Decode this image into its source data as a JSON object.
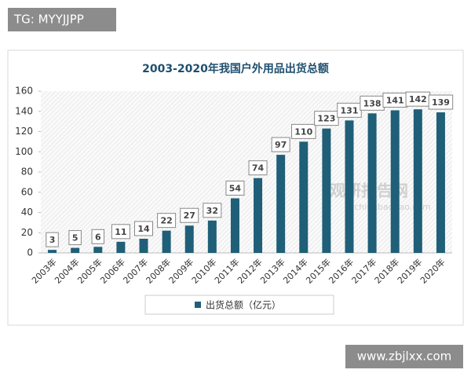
{
  "chart_data": {
    "type": "bar",
    "title": "2003-2020年我国户外用品出货总额",
    "categories": [
      "2003年",
      "2004年",
      "2005年",
      "2006年",
      "2007年",
      "2008年",
      "2009年",
      "2010年",
      "2011年",
      "2012年",
      "2013年",
      "2014年",
      "2015年",
      "2016年",
      "2017年",
      "2018年",
      "2019年",
      "2020年"
    ],
    "series": [
      {
        "name": "出货总额（亿元）",
        "color": "#1f5f78",
        "values": [
          3,
          5,
          6,
          11,
          14,
          22,
          27,
          32,
          54,
          74,
          97,
          110,
          123,
          131,
          138,
          141,
          142,
          139
        ]
      }
    ],
    "ylim": [
      0,
      160
    ],
    "yticks": [
      0,
      20,
      40,
      60,
      80,
      100,
      120,
      140,
      160
    ],
    "grid": false,
    "legend": "bottom"
  },
  "watermarks": {
    "top_left": "TG: MYYJJPP",
    "bottom_right": "www.zbjlxx.com",
    "logo": "观研报告网",
    "logo_url": "chinabaogao.com"
  }
}
